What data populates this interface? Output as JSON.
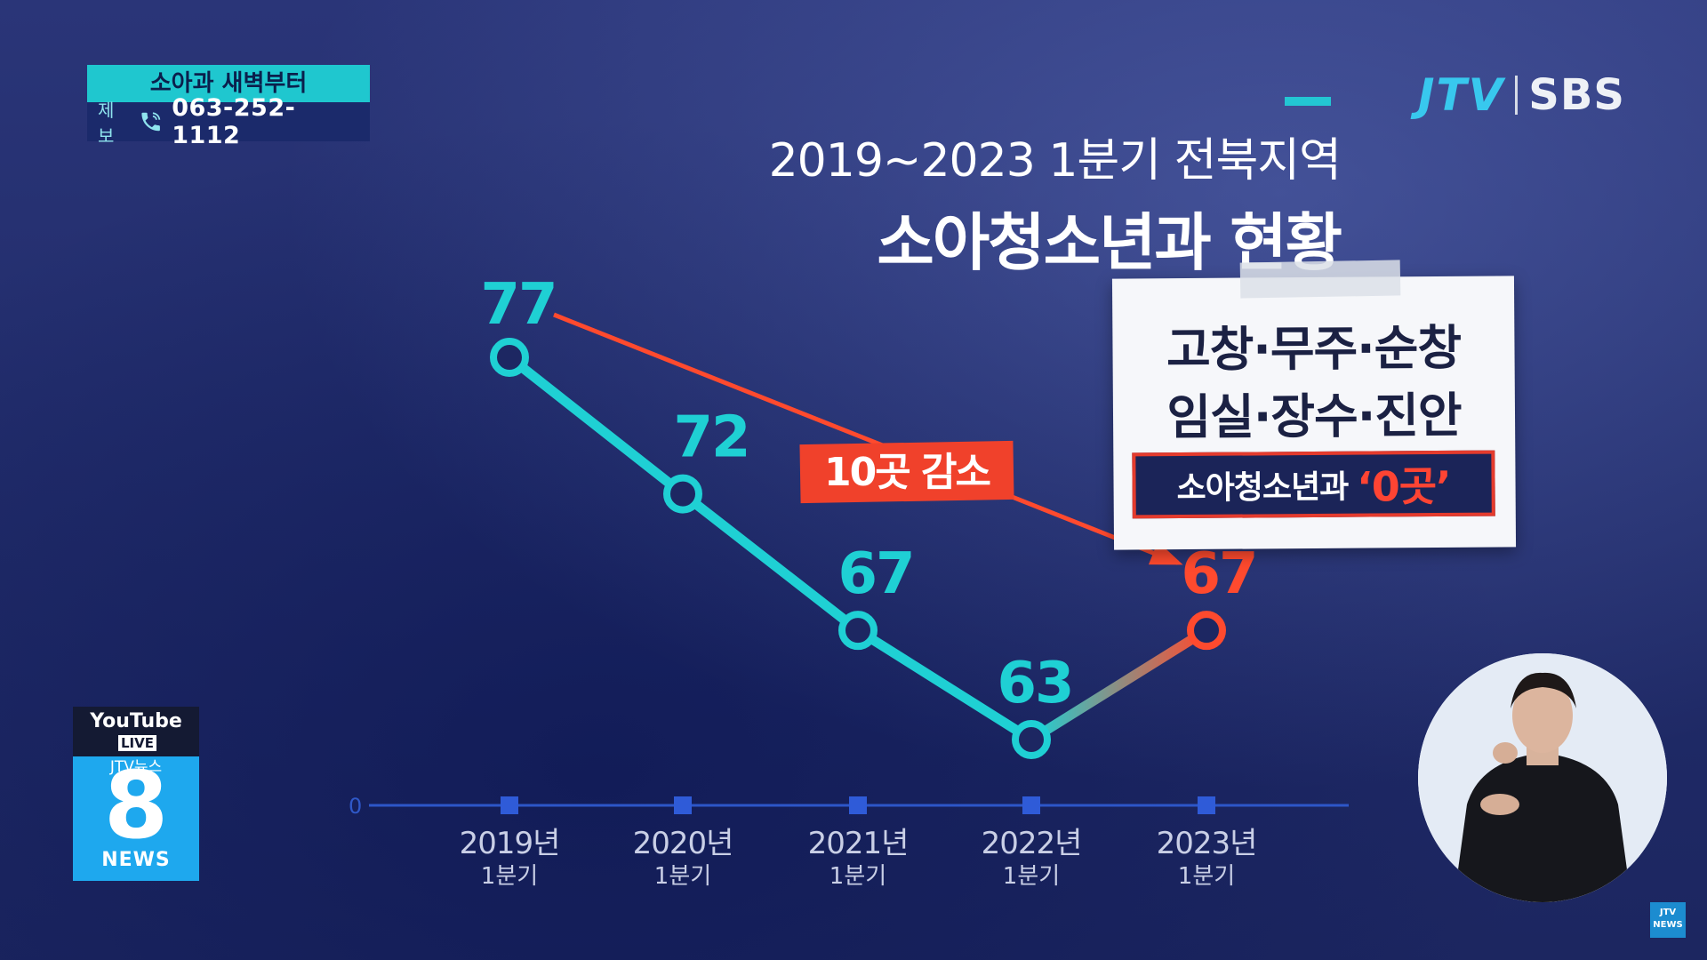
{
  "tip": {
    "header": "소아과 새벽부터",
    "label": "제보",
    "number": "063-252-1112"
  },
  "logo": {
    "jtv": "JTV",
    "sbs": "SBS"
  },
  "title": {
    "line1": "2019~2023 1분기 전북지역",
    "line2": "소아청소년과 현황"
  },
  "note_card": {
    "line1": "고창·무주·순창",
    "line2": "임실·장수·진안",
    "box_label": "소아청소년과",
    "box_value": "‘0곳’"
  },
  "badge": {
    "youtube": "YouTube",
    "live": "LIVE",
    "channel": "JTV뉴스",
    "number": "8",
    "news": "NEWS"
  },
  "corner_logo": {
    "line1": "JTV",
    "line2": "NEWS"
  },
  "colors": {
    "series": "#1fd0d4",
    "highlight": "#ff4a2e",
    "axis": "#2d56c8",
    "text": "#ffffff"
  },
  "chart_data": {
    "type": "line",
    "categories": [
      "2019년|1분기",
      "2020년|1분기",
      "2021년|1분기",
      "2022년|1분기",
      "2023년|1분기"
    ],
    "values": [
      77,
      72,
      67,
      63,
      67
    ],
    "y_zero_label": "0",
    "ylim": [
      0,
      77
    ],
    "annotation": {
      "text": "10곳 감소",
      "from_index": 0,
      "to_index": 4
    },
    "highlight_index": 4
  }
}
